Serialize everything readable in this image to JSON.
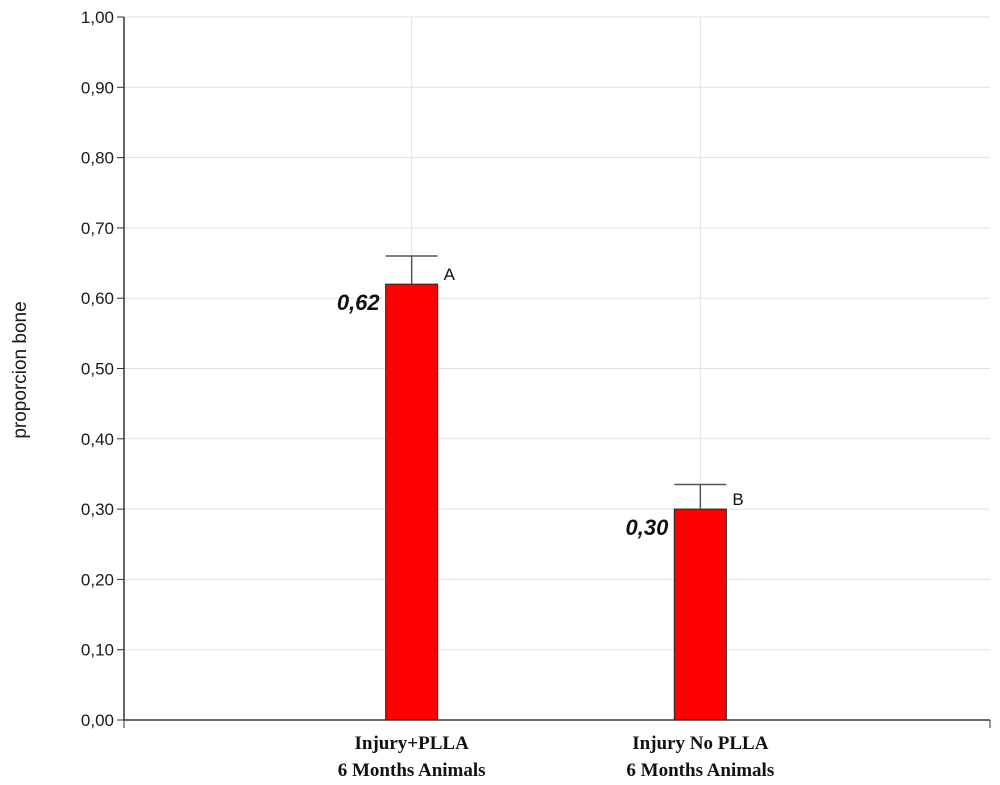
{
  "chart_data": {
    "type": "bar",
    "title": "",
    "xlabel": "",
    "ylabel": "proporcion bone",
    "categories": [
      [
        "Injury+PLLA",
        "6 Months Animals"
      ],
      [
        "Injury No PLLA",
        "6 Months Animals"
      ]
    ],
    "values": [
      0.62,
      0.3
    ],
    "value_labels": [
      "0,62",
      "0,30"
    ],
    "error_upper": [
      0.66,
      0.335
    ],
    "group_letters": [
      "A",
      "B"
    ],
    "ylim": [
      0,
      1.0
    ],
    "yticks": [
      "0,00",
      "0,10",
      "0,20",
      "0,30",
      "0,40",
      "0,50",
      "0,60",
      "0,70",
      "0,80",
      "0,90",
      "1,00"
    ],
    "grid": true,
    "legend": "none",
    "colors": {
      "bar": "#ff0000",
      "bar_edge": "#222222",
      "grid": "#e0e0e0",
      "axis": "#333333"
    }
  }
}
